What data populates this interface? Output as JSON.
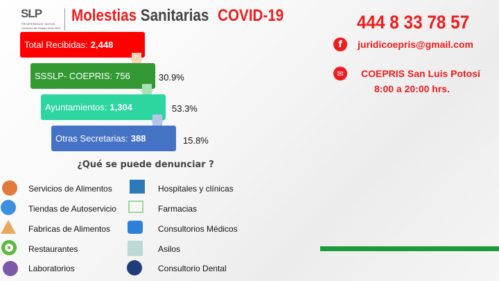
{
  "logo": {
    "text": "SLP",
    "tagline": "PROSPEREMOS JUNTOS",
    "subtitle": "Gobierno del Estado 2015-2021"
  },
  "title": {
    "part1": "Molestias",
    "part2": "Sanitarias",
    "part3": "COVID-19"
  },
  "funnel": [
    {
      "label": "Total Recibidas:",
      "value": "2,448",
      "percent": "",
      "color": "#ff0000"
    },
    {
      "label": "SSSLP- COEPRIS:",
      "value": "756",
      "percent": "30.9%",
      "color": "#339933"
    },
    {
      "label": "Ayuntamientos:",
      "value": "1,304",
      "percent": "53.3%",
      "color": "#2dd6a0"
    },
    {
      "label": "Otras Secretarias:",
      "value": "388",
      "percent": "15.8%",
      "color": "#4472c4"
    }
  ],
  "contact": {
    "phone": "444 8 33 78 57",
    "email": "juridicoepris@gmail.com",
    "office": "COEPRIS San Luis Potosí",
    "hours": "8:00 a 20:00 hrs.",
    "email_icon": "facebook-icon",
    "office_icon": "envelope-icon"
  },
  "question": "¿Qué se puede denunciar ?",
  "left_items": [
    {
      "label": "Servicios de Alimentos",
      "icon": "food-bowl-icon"
    },
    {
      "label": "Tiendas de Autoservicio",
      "icon": "store-building-icon"
    },
    {
      "label": "Fabricas de Alimentos",
      "icon": "food-pyramid-icon"
    },
    {
      "label": "Restaurantes",
      "icon": "plate-icon"
    },
    {
      "label": "Laboratorios",
      "icon": "microscope-icon"
    }
  ],
  "right_items": [
    {
      "label": "Hospitales y clínicas",
      "icon": "hospital-icon"
    },
    {
      "label": "Farmacias",
      "icon": "pharmacy-icon"
    },
    {
      "label": "Consultorios Médicos",
      "icon": "medical-kit-icon"
    },
    {
      "label": "Asilos",
      "icon": "nursing-home-icon"
    },
    {
      "label": "Consultorio  Dental",
      "icon": "dental-chair-icon"
    }
  ]
}
